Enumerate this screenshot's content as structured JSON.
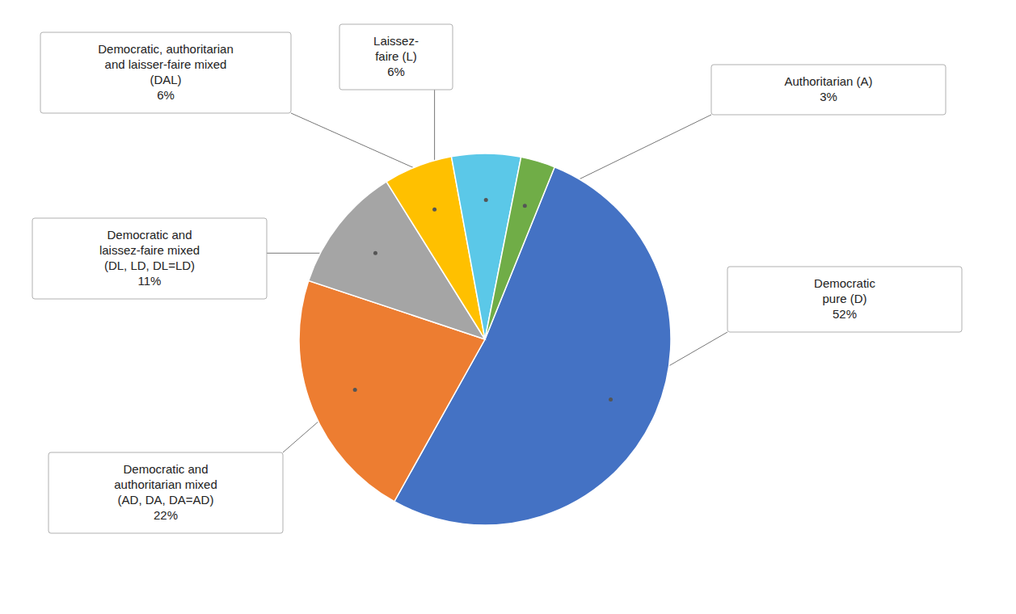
{
  "chart_data": {
    "type": "pie",
    "categories": [
      "Democratic\npure (D)\n52%",
      "Democratic and\nauthoritarian mixed\n(AD, DA, DA=AD)\n22%",
      "Democratic and\nlaissez-faire mixed\n(DL, LD, DL=LD)\n11%",
      "Laissez-\nfaire (L)\n6%",
      "Democratic, authoritarian\nand laisser-faire mixed\n(DAL)\n6%",
      "Authoritarian (A)\n3%"
    ],
    "values": [
      52,
      22,
      11,
      6,
      6,
      3
    ],
    "colors": [
      "#4472C4",
      "#ED7D31",
      "#A5A5A5",
      "#FFC000",
      "#5BC8E8",
      "#70AD47"
    ]
  }
}
